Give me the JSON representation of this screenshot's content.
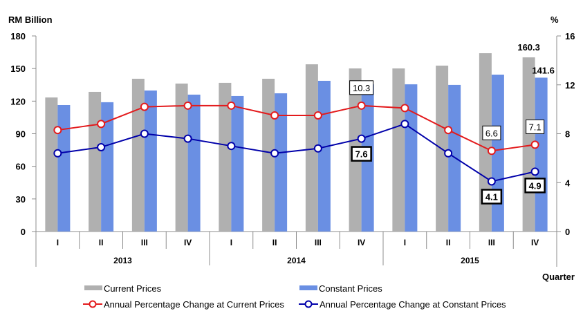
{
  "chart_data": {
    "type": "bar",
    "y_left_label": "RM Billion",
    "y_right_label": "%",
    "x_label": "Quarter",
    "y_left_lim": [
      0,
      180
    ],
    "y_left_ticks": [
      "0",
      "30",
      "60",
      "90",
      "120",
      "150",
      "180"
    ],
    "y_right_lim": [
      0,
      16
    ],
    "y_right_ticks": [
      "0",
      "4",
      "8",
      "12",
      "16"
    ],
    "years": [
      "2013",
      "2014",
      "2015"
    ],
    "categories": [
      "I",
      "II",
      "III",
      "IV",
      "I",
      "II",
      "III",
      "IV",
      "I",
      "II",
      "III",
      "IV"
    ],
    "series": [
      {
        "name": "Current Prices",
        "kind": "bar",
        "axis": "left",
        "color": "#b0b0b0",
        "values": [
          123.4,
          128.5,
          140.6,
          136.2,
          136.8,
          140.6,
          153.9,
          150.1,
          150.1,
          152.7,
          164.1,
          160.3
        ]
      },
      {
        "name": "Constant Prices",
        "kind": "bar",
        "axis": "left",
        "color": "#6a8fe3",
        "values": [
          116.4,
          119.0,
          129.8,
          126.0,
          124.7,
          127.2,
          138.7,
          135.5,
          135.5,
          134.9,
          144.4,
          141.6
        ]
      },
      {
        "name": "Annual Percentage Change  at Current Prices",
        "kind": "line",
        "axis": "right",
        "color": "#e31a1c",
        "values": [
          8.3,
          8.8,
          10.2,
          10.3,
          10.3,
          9.5,
          9.5,
          10.3,
          10.1,
          8.3,
          6.6,
          7.1
        ]
      },
      {
        "name": "Annual Percentage  Change  at Constant Prices",
        "kind": "line",
        "axis": "right",
        "color": "#0000aa",
        "values": [
          6.4,
          6.9,
          8.0,
          7.6,
          7.0,
          6.4,
          6.8,
          7.6,
          8.8,
          6.4,
          4.1,
          4.9
        ]
      }
    ],
    "annotations": [
      {
        "series": 0,
        "index": 11,
        "text": "160.3",
        "style": "bold"
      },
      {
        "series": 1,
        "index": 11,
        "text": "141.6",
        "style": "bold"
      },
      {
        "series": 2,
        "index": 7,
        "text": "10.3",
        "style": "box-thin"
      },
      {
        "series": 2,
        "index": 10,
        "text": "6.6",
        "style": "box-thin"
      },
      {
        "series": 2,
        "index": 11,
        "text": "7.1",
        "style": "box-thin"
      },
      {
        "series": 3,
        "index": 7,
        "text": "7.6",
        "style": "box-bold"
      },
      {
        "series": 3,
        "index": 10,
        "text": "4.1",
        "style": "box-bold"
      },
      {
        "series": 3,
        "index": 11,
        "text": "4.9",
        "style": "box-bold"
      }
    ],
    "legend": [
      "Current Prices",
      "Constant Prices",
      "Annual Percentage Change  at Current Prices",
      "Annual Percentage  Change  at Constant Prices"
    ],
    "legend_position": "bottom",
    "grid": false
  }
}
